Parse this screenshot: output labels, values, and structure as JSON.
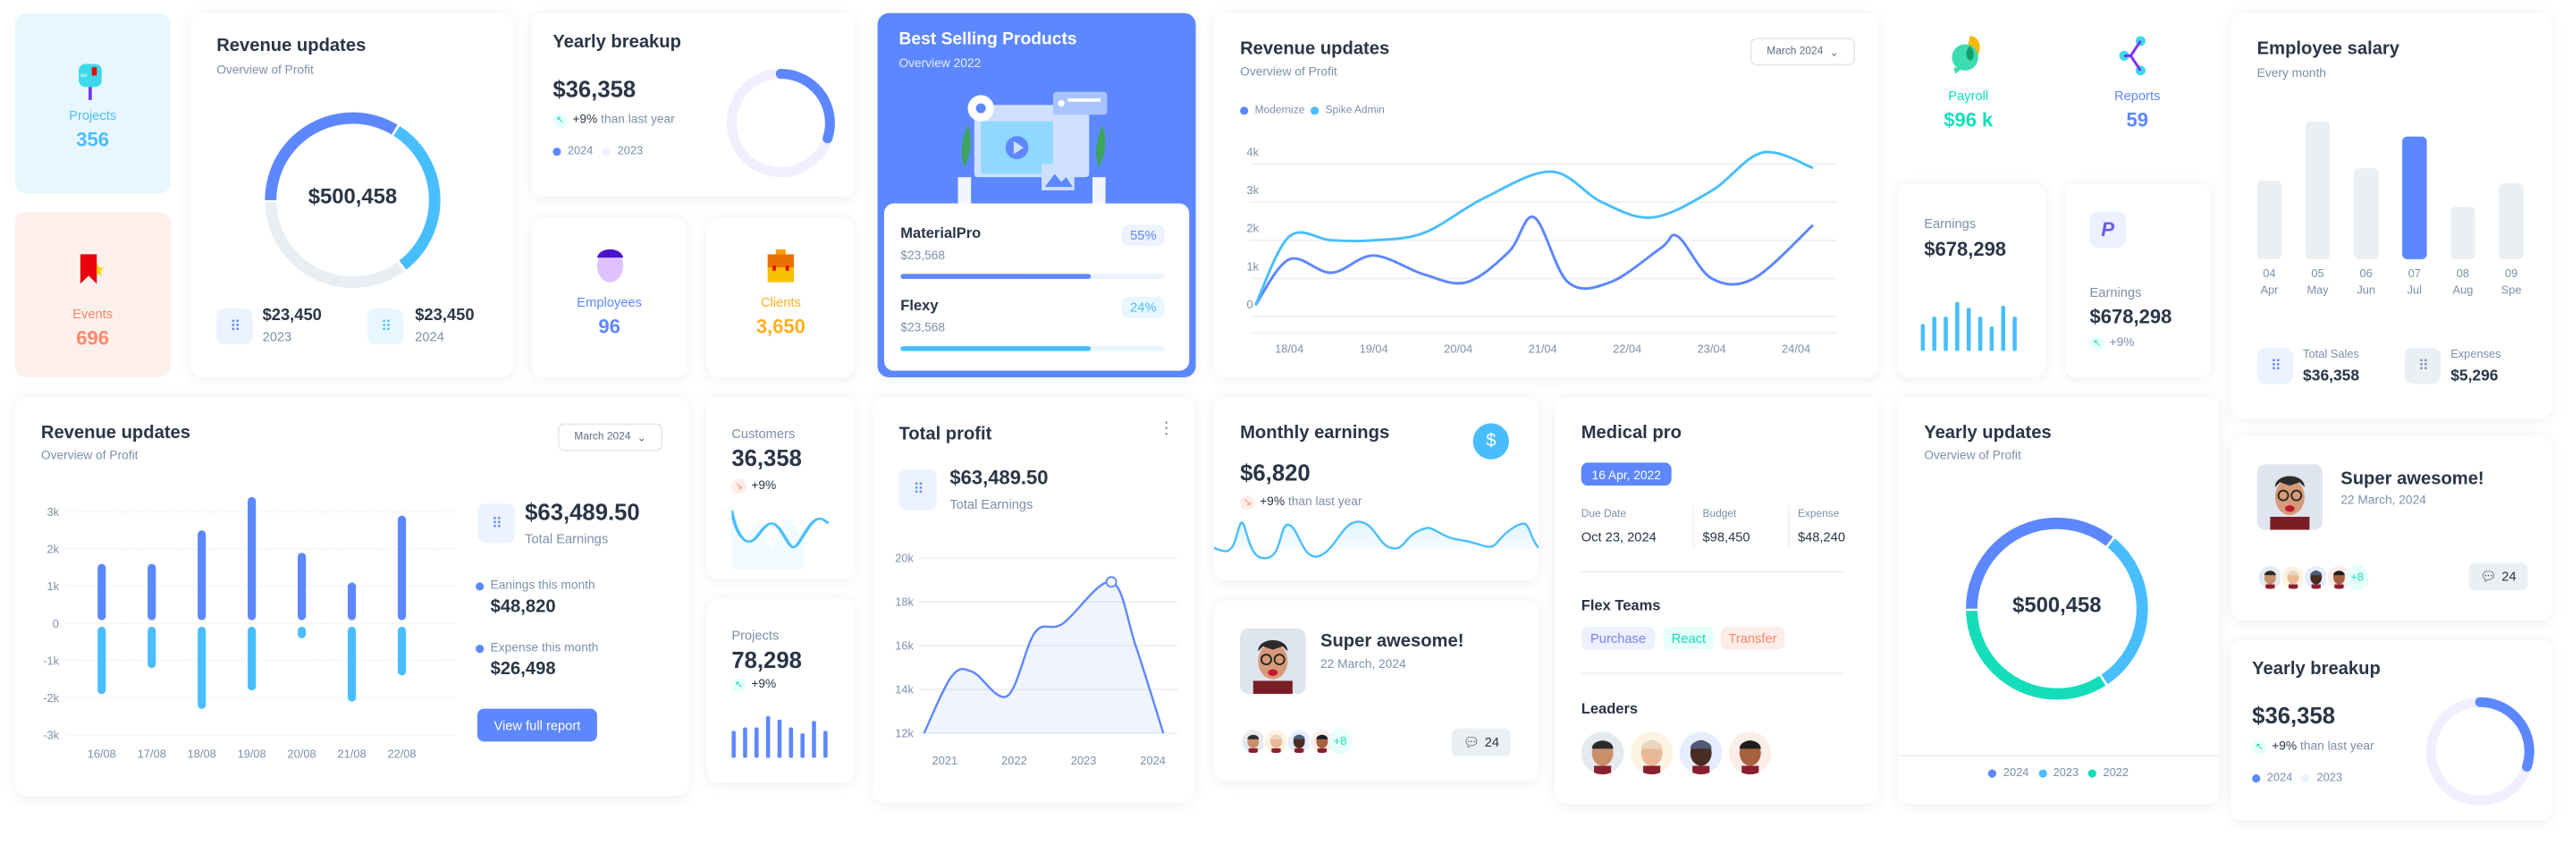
{
  "projects": {
    "label": "Projects",
    "value": "356",
    "icon": "mailbox-icon"
  },
  "events": {
    "label": "Events",
    "value": "696",
    "icon": "bookmark-star-icon"
  },
  "revenue_donut": {
    "title": "Revenue updates",
    "subtitle": "Overview of Profit",
    "center": "$500,458",
    "segments": [
      0.34,
      0.31,
      0.35
    ],
    "colors": [
      "#5d87ff",
      "#49beff",
      "#e9eef3"
    ],
    "stats": [
      {
        "value": "$23,450",
        "label": "2023"
      },
      {
        "value": "$23,450",
        "label": "2024"
      }
    ]
  },
  "yearly_breakup": {
    "title": "Yearly breakup",
    "value": "$36,358",
    "trend": "+9%",
    "trend_text": "than last year",
    "legend": [
      "2024",
      "2023"
    ],
    "share": 0.3
  },
  "employees": {
    "label": "Employees",
    "value": "96"
  },
  "clients": {
    "label": "Clients",
    "value": "3,650"
  },
  "best_selling": {
    "title": "Best Selling Products",
    "subtitle": "Overview 2022",
    "products": [
      {
        "name": "MaterialPro",
        "price": "$23,568",
        "percent": "55%",
        "progress": 0.72,
        "color": "#5d87ff"
      },
      {
        "name": "Flexy",
        "price": "$23,568",
        "percent": "24%",
        "progress": 0.72,
        "color": "#49beff"
      }
    ]
  },
  "revenue_line": {
    "title": "Revenue updates",
    "subtitle": "Overview of Profit",
    "select": "March 2024"
  },
  "payroll": {
    "label": "Payroll",
    "value": "$96 k"
  },
  "reports": {
    "label": "Reports",
    "value": "59"
  },
  "earnings1": {
    "label": "Earnings",
    "value": "$678,298",
    "bars": [
      0.55,
      0.7,
      0.7,
      1.0,
      0.88,
      0.7,
      0.5,
      0.92,
      0.7
    ]
  },
  "earnings2": {
    "label": "Earnings",
    "value": "$678,298",
    "trend": "+9%"
  },
  "employee_salary": {
    "title": "Employee salary",
    "subtitle": "Every month",
    "total_sales_label": "Total Sales",
    "total_sales": "$36,358",
    "expenses_label": "Expenses",
    "expenses": "$5,296"
  },
  "revenue_bars": {
    "title": "Revenue updates",
    "subtitle": "Overview of Profit",
    "select": "March 2024",
    "total": "$63,489.50",
    "total_label": "Total Earnings",
    "earn_label": "Eanings this month",
    "earn_value": "$48,820",
    "exp_label": "Expense this month",
    "exp_value": "$26,498",
    "button": "View full report"
  },
  "customers": {
    "label": "Customers",
    "value": "36,358",
    "trend": "+9%"
  },
  "projects2": {
    "label": "Projects",
    "value": "78,298",
    "trend": "+9%",
    "bars": [
      0.55,
      0.62,
      0.62,
      0.85,
      0.78,
      0.62,
      0.5,
      0.75,
      0.55
    ]
  },
  "total_profit": {
    "title": "Total profit",
    "value": "$63,489.50",
    "label": "Total Earnings"
  },
  "monthly_earnings": {
    "title": "Monthly earnings",
    "value": "$6,820",
    "trend": "+9%",
    "trend_text": "than last year"
  },
  "super1": {
    "title": "Super awesome!",
    "date": "22 March, 2024",
    "more": "+8",
    "comments": "24"
  },
  "medical": {
    "title": "Medical pro",
    "date": "16 Apr, 2022",
    "cols": [
      {
        "label": "Due Date",
        "value": "Oct 23, 2024"
      },
      {
        "label": "Budget",
        "value": "$98,450"
      },
      {
        "label": "Expense",
        "value": "$48,240"
      }
    ],
    "teams_title": "Flex Teams",
    "tags": [
      "Purchase",
      "React",
      "Transfer"
    ],
    "leaders_title": "Leaders"
  },
  "yearly_updates": {
    "title": "Yearly updates",
    "subtitle": "Overview of Profit",
    "center": "$500,458",
    "legend": [
      "2024",
      "2023",
      "2022"
    ],
    "segments": [
      0.36,
      0.3,
      0.34
    ],
    "colors": [
      "#5d87ff",
      "#49beff",
      "#13deb9"
    ]
  },
  "super2": {
    "title": "Super awesome!",
    "date": "22 March, 2024",
    "more": "+8",
    "comments": "24"
  },
  "yearly_breakup2": {
    "title": "Yearly breakup",
    "value": "$36,358",
    "trend": "+9%",
    "trend_text": "than last year",
    "legend": [
      "2024",
      "2023"
    ],
    "share": 0.3
  },
  "chart_data": [
    {
      "type": "line",
      "title": "Revenue updates",
      "categories": [
        "18/04",
        "19/04",
        "20/04",
        "21/04",
        "22/04",
        "23/04",
        "24/04"
      ],
      "yticks": [
        "0",
        "1k",
        "2k",
        "3k",
        "4k"
      ],
      "ylim": [
        0,
        4000
      ],
      "series": [
        {
          "name": "Modernize",
          "color": "#5d87ff",
          "points": [
            [
              -0.4,
              0
            ],
            [
              0,
              1200
            ],
            [
              0.5,
              850
            ],
            [
              1,
              1300
            ],
            [
              1.6,
              800
            ],
            [
              2.1,
              600
            ],
            [
              2.6,
              1400
            ],
            [
              2.9,
              2300
            ],
            [
              3.3,
              600
            ],
            [
              3.8,
              600
            ],
            [
              4.4,
              1500
            ],
            [
              4.6,
              1800
            ],
            [
              5.0,
              700
            ],
            [
              5.5,
              700
            ],
            [
              6.2,
              2100
            ]
          ]
        },
        {
          "name": "Spike Admin",
          "color": "#49beff",
          "points": [
            [
              -0.4,
              0
            ],
            [
              0,
              1800
            ],
            [
              0.5,
              1700
            ],
            [
              1,
              1700
            ],
            [
              1.6,
              1900
            ],
            [
              2.3,
              2800
            ],
            [
              3.1,
              3500
            ],
            [
              3.7,
              2700
            ],
            [
              4.3,
              2300
            ],
            [
              5.0,
              3000
            ],
            [
              5.6,
              4000
            ],
            [
              6.2,
              3600
            ]
          ]
        }
      ]
    },
    {
      "type": "bar",
      "title": "Revenue updates",
      "categories": [
        "16/08",
        "17/08",
        "18/08",
        "19/08",
        "20/08",
        "21/08",
        "22/08"
      ],
      "yticks": [
        "3k",
        "2k",
        "1k",
        "0",
        "-1k",
        "-2k",
        "-3k"
      ],
      "ylim": [
        -3000,
        3000
      ],
      "series": [
        {
          "name": "Earnings",
          "color": "#5d87ff",
          "values": [
            1600,
            1600,
            2500,
            3400,
            1900,
            1100,
            2900
          ]
        },
        {
          "name": "Expense",
          "color": "#49beff",
          "values": [
            -1900,
            -1200,
            -2300,
            -1800,
            -400,
            -2100,
            -1400
          ]
        }
      ]
    },
    {
      "type": "bar",
      "title": "Employee salary",
      "categories": [
        "04",
        "05",
        "06",
        "07",
        "08",
        "09"
      ],
      "sublabels": [
        "Apr",
        "May",
        "Jun",
        "Jul",
        "Aug",
        "Spe"
      ],
      "values": [
        57,
        100,
        66,
        89,
        38,
        55
      ],
      "highlight": 3
    },
    {
      "type": "area",
      "title": "Total profit",
      "x": [
        2020.7,
        2021.1,
        2021.4,
        2021.9,
        2022.3,
        2022.7,
        2023.4,
        2023.75,
        2024.15
      ],
      "values": [
        12,
        14.6,
        14.8,
        13.7,
        16.6,
        17.0,
        18.9,
        16.0,
        12
      ],
      "xticks": [
        "2021",
        "2022",
        "2023",
        "2024"
      ],
      "yticks": [
        "20k",
        "18k",
        "16k",
        "14k",
        "12k"
      ],
      "ylim": [
        12,
        20
      ]
    }
  ]
}
